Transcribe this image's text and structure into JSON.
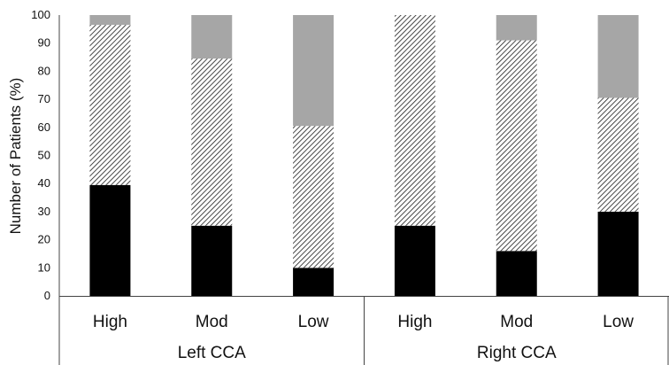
{
  "chart_data": {
    "type": "bar",
    "stacked": true,
    "ylabel": "Number of Patients (%)",
    "ylim": [
      0,
      100
    ],
    "yticks": [
      0,
      10,
      20,
      30,
      40,
      50,
      60,
      70,
      80,
      90,
      100
    ],
    "grid": false,
    "legend": "none",
    "categories": [
      "High",
      "Mod",
      "Low",
      "High",
      "Mod",
      "Low"
    ],
    "groups": [
      {
        "label": "Left CCA",
        "categories": [
          "High",
          "Mod",
          "Low"
        ]
      },
      {
        "label": "Right CCA",
        "categories": [
          "High",
          "Mod",
          "Low"
        ]
      }
    ],
    "series": [
      {
        "fill": "solid",
        "color": "#000000",
        "values": [
          39.5,
          25,
          10,
          25,
          16,
          30
        ]
      },
      {
        "fill": "hatched",
        "color": "#1a1a1a",
        "values": [
          57,
          59.5,
          50.5,
          75,
          75,
          40.5
        ]
      },
      {
        "fill": "solid",
        "color": "#a6a6a6",
        "values": [
          3.5,
          15.5,
          39.5,
          0,
          9,
          29.5
        ]
      }
    ]
  }
}
